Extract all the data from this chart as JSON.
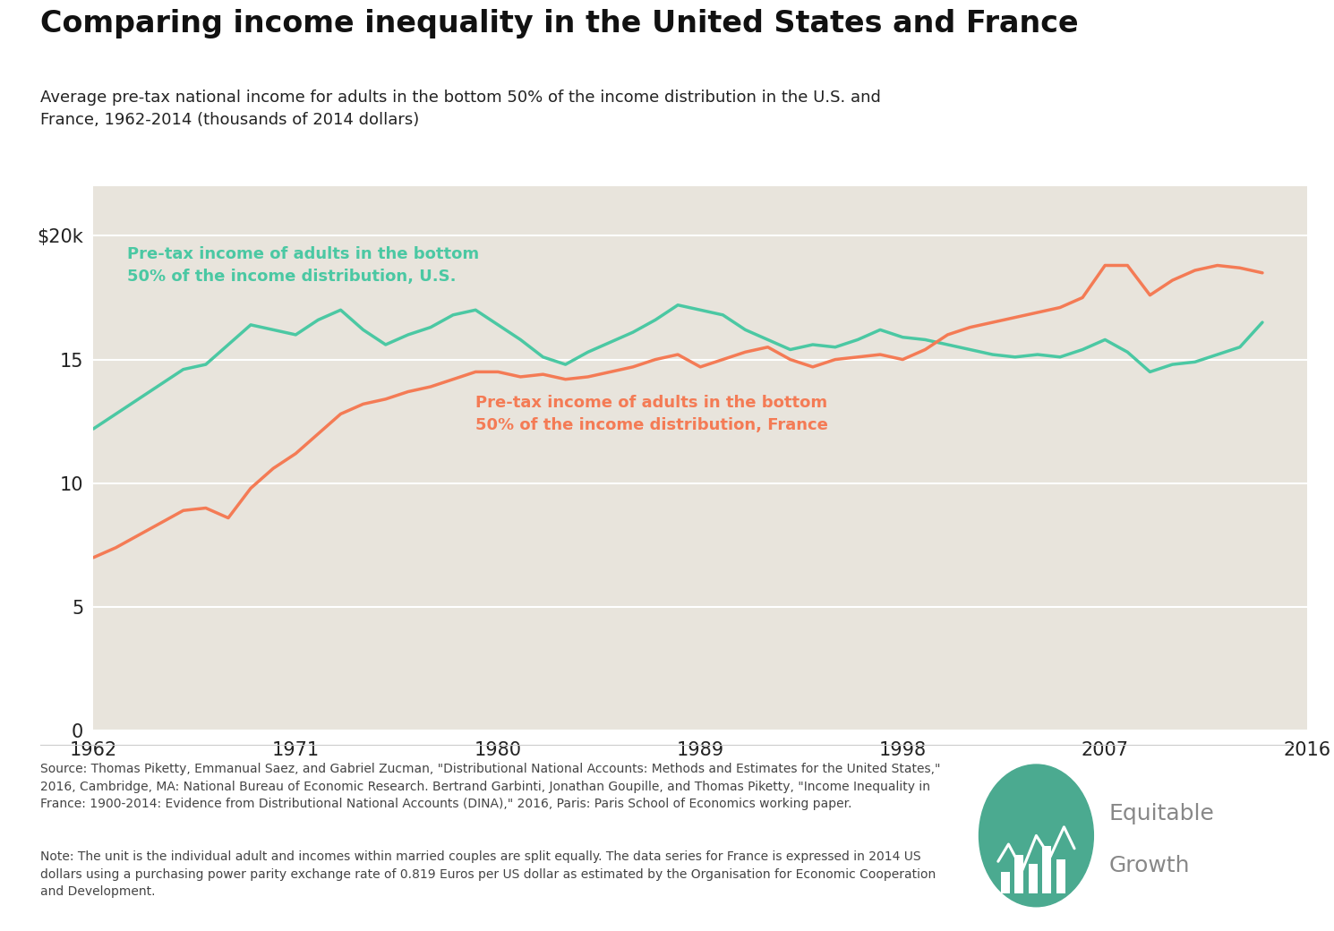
{
  "title": "Comparing income inequality in the United States and France",
  "subtitle": "Average pre-tax national income for adults in the bottom 50% of the income distribution in the U.S. and\nFrance, 1962-2014 (thousands of 2014 dollars)",
  "source_text": "Source: Thomas Piketty, Emmanual Saez, and Gabriel Zucman, \"Distributional National Accounts: Methods and Estimates for the United States,\"\n2016, Cambridge, MA: National Bureau of Economic Research. Bertrand Garbinti, Jonathan Goupille, and Thomas Piketty, \"Income Inequality in\nFrance: 1900-2014: Evidence from Distributional National Accounts (DINA),\" 2016, Paris: Paris School of Economics working paper.",
  "note_text": "Note: The unit is the individual adult and incomes within married couples are split equally. The data series for France is expressed in 2014 US\ndollars using a purchasing power parity exchange rate of 0.819 Euros per US dollar as estimated by the Organisation for Economic Cooperation\nand Development.",
  "us_color": "#4BC8A3",
  "france_color": "#F47B55",
  "bg_color": "#E8E4DC",
  "plot_bg_color": "#E8E4DC",
  "us_label": "Pre-tax income of adults in the bottom\n50% of the income distribution, U.S.",
  "france_label": "Pre-tax income of adults in the bottom\n50% of the income distribution, France",
  "years_us": [
    1962,
    1963,
    1964,
    1965,
    1966,
    1967,
    1968,
    1969,
    1970,
    1971,
    1972,
    1973,
    1974,
    1975,
    1976,
    1977,
    1978,
    1979,
    1980,
    1981,
    1982,
    1983,
    1984,
    1985,
    1986,
    1987,
    1988,
    1989,
    1990,
    1991,
    1992,
    1993,
    1994,
    1995,
    1996,
    1997,
    1998,
    1999,
    2000,
    2001,
    2002,
    2003,
    2004,
    2005,
    2006,
    2007,
    2008,
    2009,
    2010,
    2011,
    2012,
    2013,
    2014
  ],
  "values_us": [
    12.2,
    12.8,
    13.4,
    14.0,
    14.6,
    14.8,
    15.6,
    16.4,
    16.2,
    16.0,
    16.6,
    17.0,
    16.2,
    15.6,
    16.0,
    16.3,
    16.8,
    17.0,
    16.4,
    15.8,
    15.1,
    14.8,
    15.3,
    15.7,
    16.1,
    16.6,
    17.2,
    17.0,
    16.8,
    16.2,
    15.8,
    15.4,
    15.6,
    15.5,
    15.8,
    16.2,
    15.9,
    15.8,
    15.6,
    15.4,
    15.2,
    15.1,
    15.2,
    15.1,
    15.4,
    15.8,
    15.3,
    14.5,
    14.8,
    14.9,
    15.2,
    15.5,
    16.5
  ],
  "years_france": [
    1962,
    1963,
    1964,
    1965,
    1966,
    1967,
    1968,
    1969,
    1970,
    1971,
    1972,
    1973,
    1974,
    1975,
    1976,
    1977,
    1978,
    1979,
    1980,
    1981,
    1982,
    1983,
    1984,
    1985,
    1986,
    1987,
    1988,
    1989,
    1990,
    1991,
    1992,
    1993,
    1994,
    1995,
    1996,
    1997,
    1998,
    1999,
    2000,
    2001,
    2002,
    2003,
    2004,
    2005,
    2006,
    2007,
    2008,
    2009,
    2010,
    2011,
    2012,
    2013,
    2014
  ],
  "values_france": [
    7.0,
    7.4,
    7.9,
    8.4,
    8.9,
    9.0,
    8.6,
    9.8,
    10.6,
    11.2,
    12.0,
    12.8,
    13.2,
    13.4,
    13.7,
    13.9,
    14.2,
    14.5,
    14.5,
    14.3,
    14.4,
    14.2,
    14.3,
    14.5,
    14.7,
    15.0,
    15.2,
    14.7,
    15.0,
    15.3,
    15.5,
    15.0,
    14.7,
    15.0,
    15.1,
    15.2,
    15.0,
    15.4,
    16.0,
    16.3,
    16.5,
    16.7,
    16.9,
    17.1,
    17.5,
    18.8,
    18.8,
    17.6,
    18.2,
    18.6,
    18.8,
    18.7,
    18.5
  ],
  "yticks": [
    0,
    5,
    10,
    15,
    20
  ],
  "ylim": [
    0,
    22
  ],
  "xticks": [
    1962,
    1971,
    1980,
    1989,
    1998,
    2007,
    2016
  ],
  "xlim": [
    1962,
    2016
  ]
}
